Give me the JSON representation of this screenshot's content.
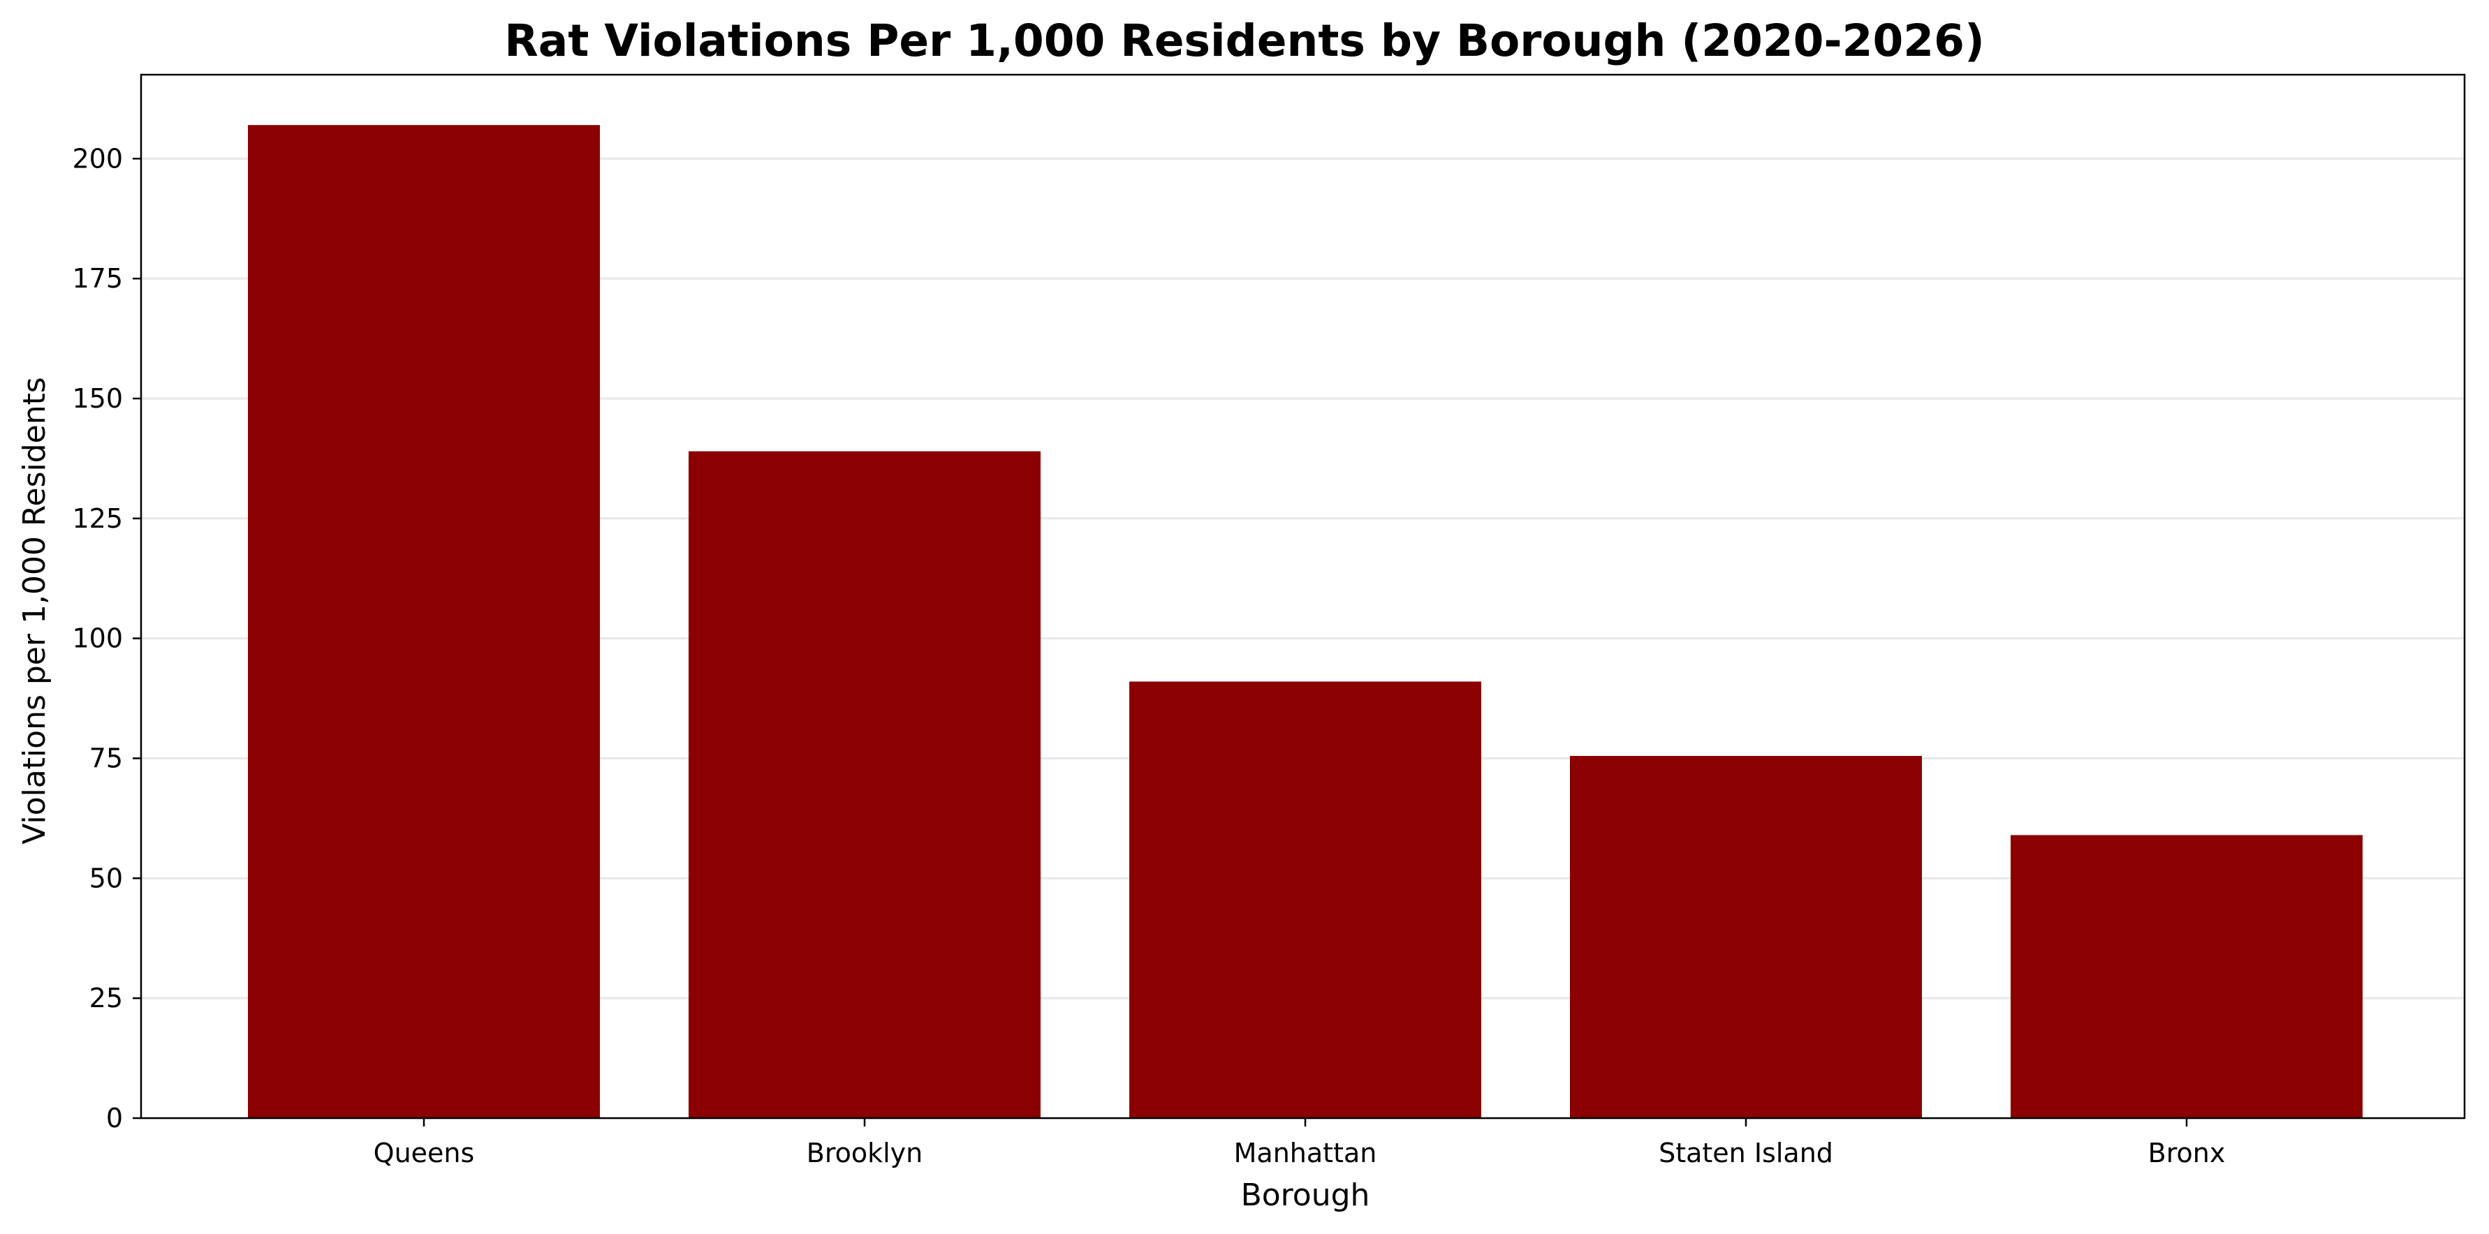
{
  "chart_data": {
    "type": "bar",
    "title": "Rat Violations Per 1,000 Residents by Borough (2020-2026)",
    "xlabel": "Borough",
    "ylabel": "Violations per 1,000 Residents",
    "categories": [
      "Queens",
      "Brooklyn",
      "Manhattan",
      "Staten Island",
      "Bronx"
    ],
    "values": [
      207,
      139,
      91,
      75.5,
      59
    ],
    "ylim": [
      0,
      217.5
    ],
    "yticks": [
      0,
      25,
      50,
      75,
      100,
      125,
      150,
      175,
      200
    ],
    "ytick_labels": [
      "0",
      "25",
      "50",
      "75",
      "100",
      "125",
      "150",
      "175",
      "200"
    ],
    "grid": "y-axis only",
    "legend": "none",
    "bar_color": "#8b0000"
  }
}
